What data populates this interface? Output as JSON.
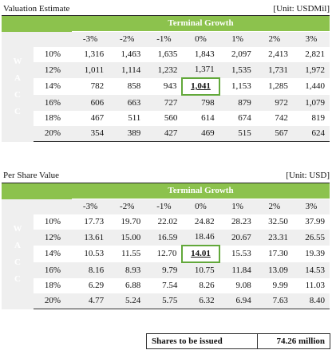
{
  "valuation": {
    "title": "Valuation Estimate",
    "unit": "[Unit: USDMil]",
    "band_label": "Terminal Growth",
    "row_axis_letters": [
      "W",
      "A",
      "C",
      "C"
    ],
    "columns": [
      "-3%",
      "-2%",
      "-1%",
      "0%",
      "1%",
      "2%",
      "3%"
    ],
    "rows": [
      {
        "label": "10%",
        "values": [
          "1,316",
          "1,463",
          "1,635",
          "1,843",
          "2,097",
          "2,413",
          "2,821"
        ]
      },
      {
        "label": "12%",
        "values": [
          "1,011",
          "1,114",
          "1,232",
          "1,371",
          "1,535",
          "1,731",
          "1,972"
        ]
      },
      {
        "label": "14%",
        "values": [
          "782",
          "858",
          "943",
          "1,041",
          "1,153",
          "1,285",
          "1,440"
        ]
      },
      {
        "label": "16%",
        "values": [
          "606",
          "663",
          "727",
          "798",
          "879",
          "972",
          "1,079"
        ]
      },
      {
        "label": "18%",
        "values": [
          "467",
          "511",
          "560",
          "614",
          "674",
          "742",
          "819"
        ]
      },
      {
        "label": "20%",
        "values": [
          "354",
          "389",
          "427",
          "469",
          "515",
          "567",
          "624"
        ]
      }
    ],
    "highlight": {
      "row": 2,
      "col": 3
    }
  },
  "per_share": {
    "title": "Per Share Value",
    "unit": "[Unit: USD]",
    "band_label": "Terminal Growth",
    "row_axis_letters": [
      "W",
      "A",
      "C",
      "C"
    ],
    "columns": [
      "-3%",
      "-2%",
      "-1%",
      "0%",
      "1%",
      "2%",
      "3%"
    ],
    "rows": [
      {
        "label": "10%",
        "values": [
          "17.73",
          "19.70",
          "22.02",
          "24.82",
          "28.23",
          "32.50",
          "37.99"
        ]
      },
      {
        "label": "12%",
        "values": [
          "13.61",
          "15.00",
          "16.59",
          "18.46",
          "20.67",
          "23.31",
          "26.55"
        ]
      },
      {
        "label": "14%",
        "values": [
          "10.53",
          "11.55",
          "12.70",
          "14.01",
          "15.53",
          "17.30",
          "19.39"
        ]
      },
      {
        "label": "16%",
        "values": [
          "8.16",
          "8.93",
          "9.79",
          "10.75",
          "11.84",
          "13.09",
          "14.53"
        ]
      },
      {
        "label": "18%",
        "values": [
          "6.29",
          "6.88",
          "7.54",
          "8.26",
          "9.08",
          "9.99",
          "11.03"
        ]
      },
      {
        "label": "20%",
        "values": [
          "4.77",
          "5.24",
          "5.75",
          "6.32",
          "6.94",
          "7.63",
          "8.40"
        ]
      }
    ],
    "highlight": {
      "row": 2,
      "col": 3
    }
  },
  "shares": {
    "label": "Shares to be issued",
    "value": "74.26  million"
  },
  "colors": {
    "green": "#8cc24d",
    "highlight_border": "#62a83a",
    "shade": "#efefef"
  }
}
